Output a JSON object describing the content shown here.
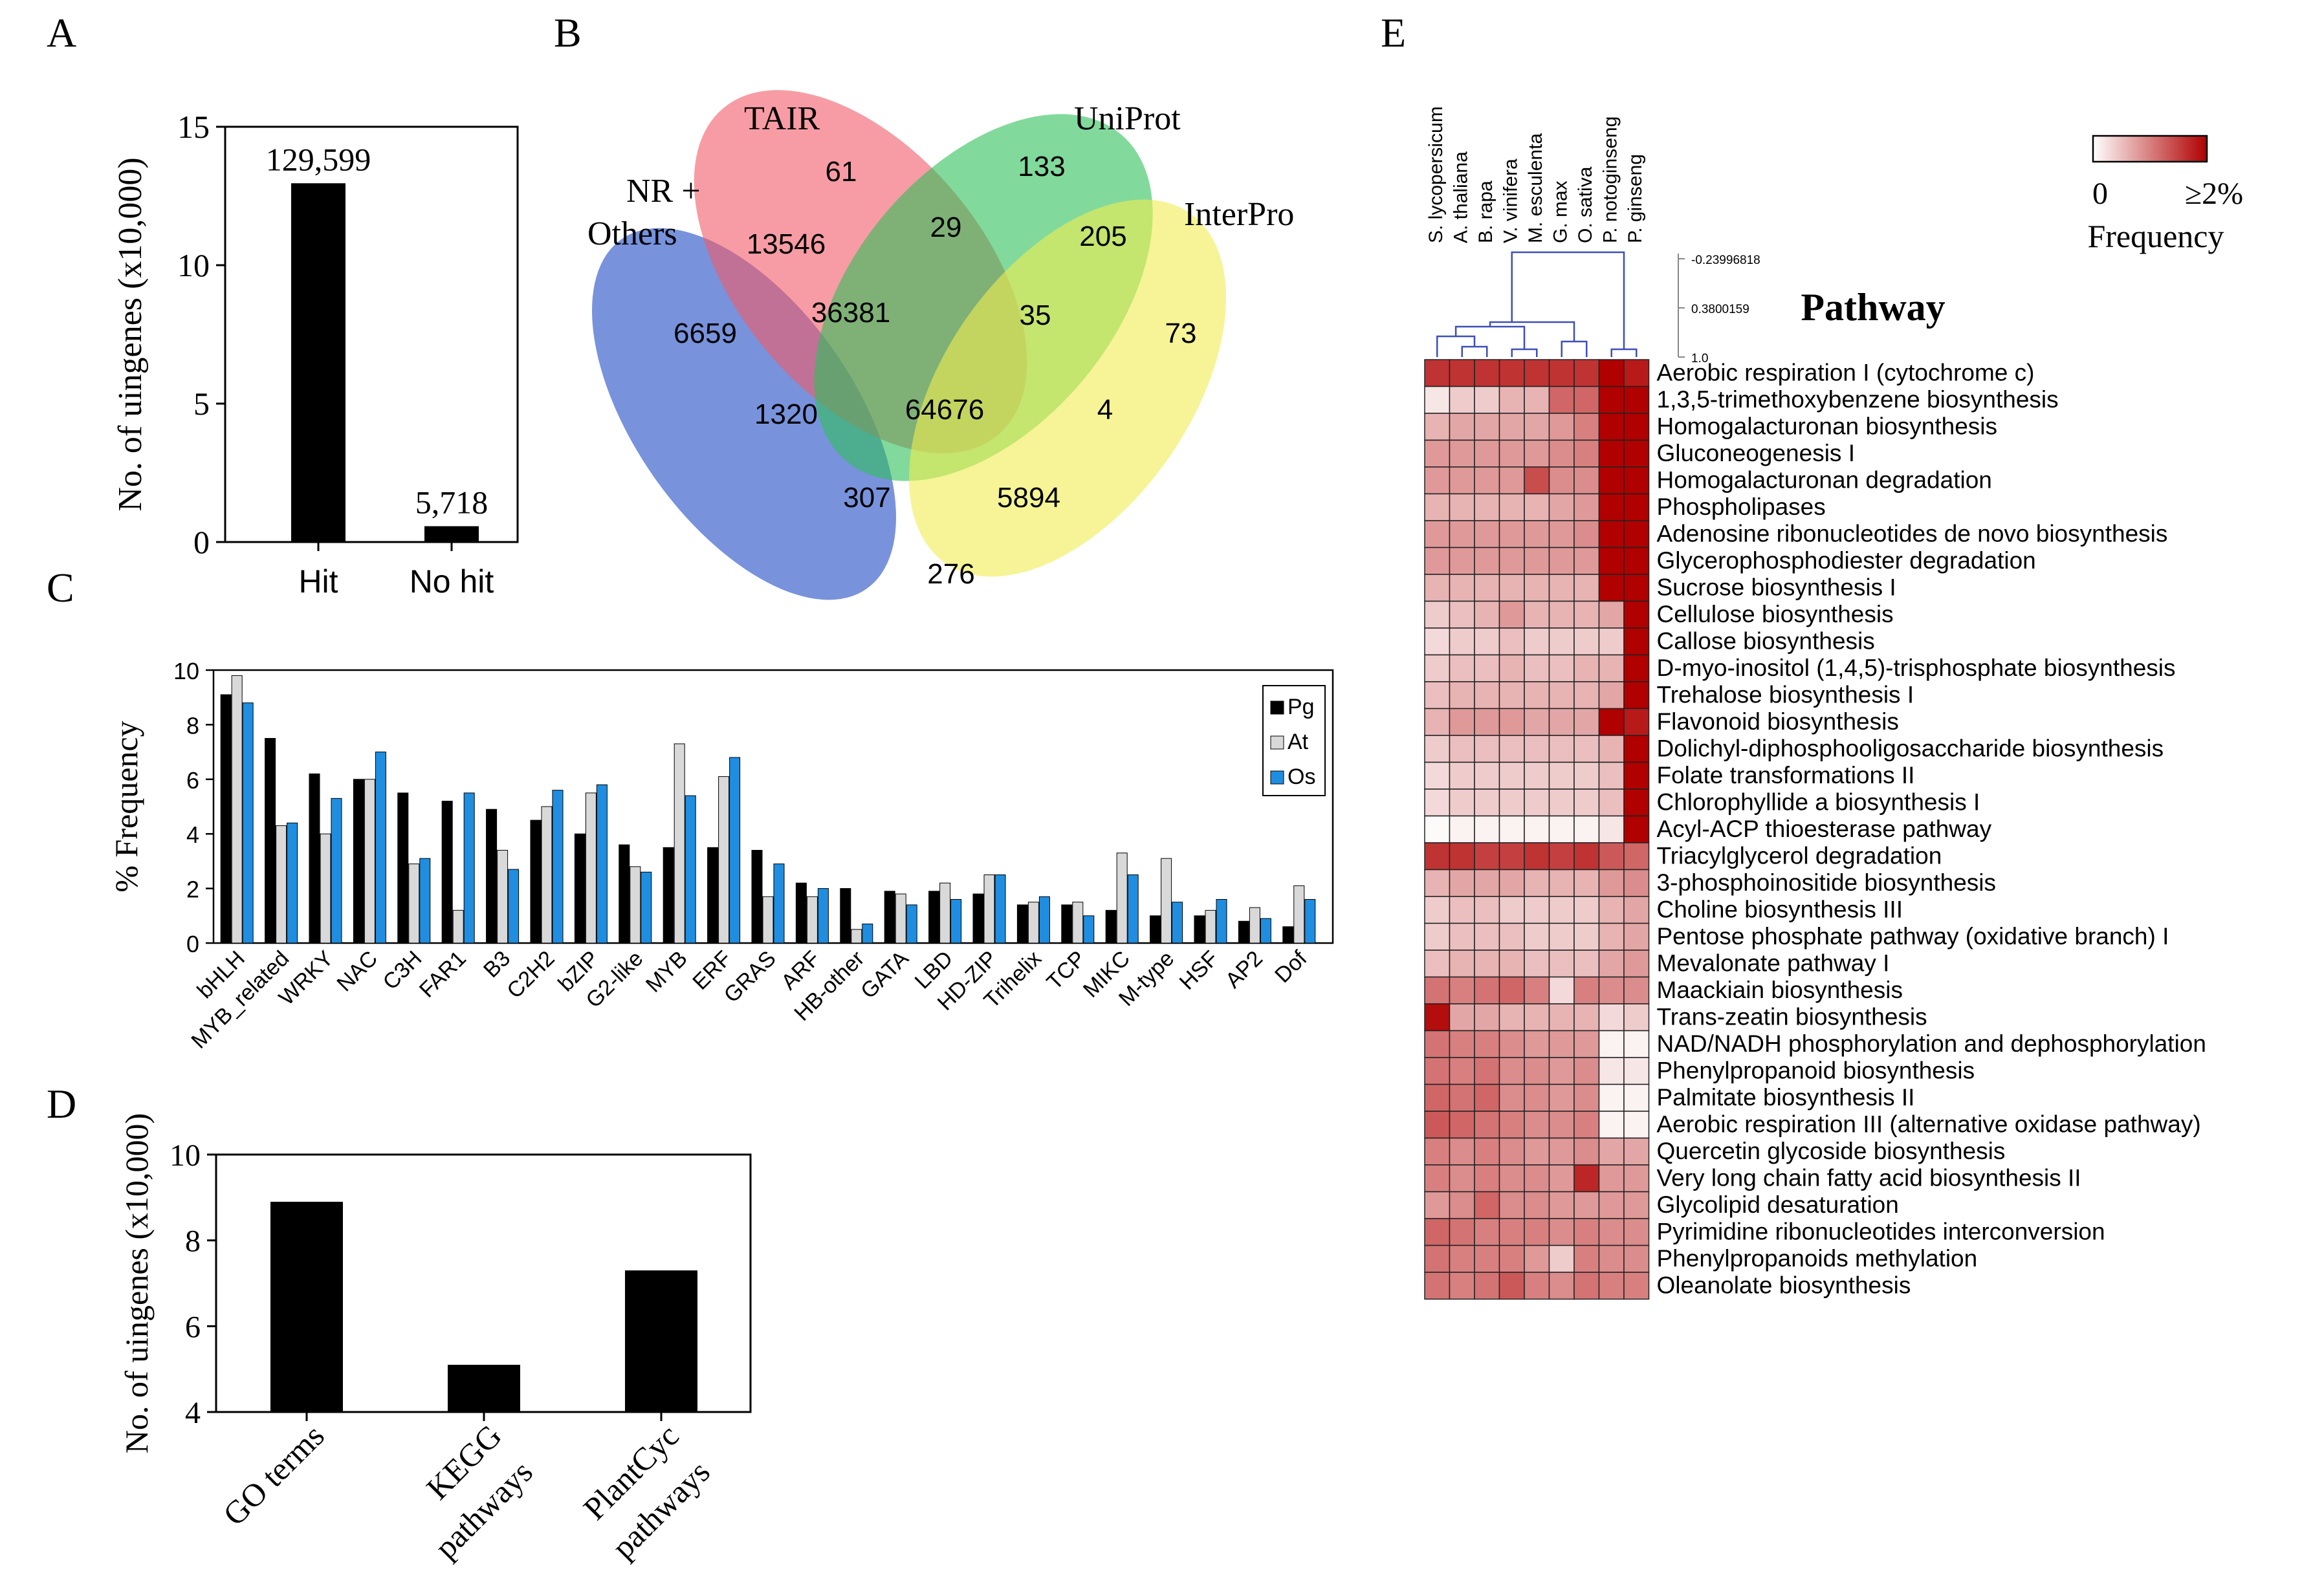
{
  "panels": {
    "a": "A",
    "b": "B",
    "c": "C",
    "d": "D",
    "e": "E"
  },
  "chart_data": [
    {
      "id": "A",
      "type": "bar",
      "categories": [
        "Hit",
        "No hit"
      ],
      "values": [
        12.9599,
        0.5718
      ],
      "data_labels": [
        "129,599",
        "5,718"
      ],
      "ylabel": "No. of uingenes (x10,000)",
      "ylim": [
        0,
        15
      ],
      "yticks": [
        0,
        5,
        10,
        15
      ]
    },
    {
      "id": "B",
      "type": "venn",
      "sets": [
        "NR +",
        "Others",
        "TAIR",
        "UniProt",
        "InterPro"
      ],
      "regions": [
        {
          "label": "NR + Others only",
          "value": "6659"
        },
        {
          "label": "TAIR only",
          "value": "61"
        },
        {
          "label": "UniProt only",
          "value": "133"
        },
        {
          "label": "InterPro only",
          "value": "73"
        },
        {
          "label": "NR+TAIR",
          "value": "13546"
        },
        {
          "label": "TAIR+UniProt",
          "value": "29"
        },
        {
          "label": "UniProt+InterPro",
          "value": "205"
        },
        {
          "label": "NR+TAIR+UniProt",
          "value": "36381"
        },
        {
          "label": "TAIR+UniProt+InterPro",
          "value": "35"
        },
        {
          "label": "NR+UniProt",
          "value": "1320"
        },
        {
          "label": "All four",
          "value": "64676"
        },
        {
          "label": "TAIR+InterPro",
          "value": "4"
        },
        {
          "label": "NR+UniProt+InterPro",
          "value": "307"
        },
        {
          "label": "NR+TAIR+InterPro",
          "value": "5894"
        },
        {
          "label": "NR+InterPro",
          "value": "276"
        }
      ]
    },
    {
      "id": "C",
      "type": "bar",
      "ylabel": "% Frequency",
      "ylim": [
        0,
        10
      ],
      "yticks": [
        0,
        2,
        4,
        6,
        8,
        10
      ],
      "categories": [
        "bHLH",
        "MYB_related",
        "WRKY",
        "NAC",
        "C3H",
        "FAR1",
        "B3",
        "C2H2",
        "bZIP",
        "G2-like",
        "MYB",
        "ERF",
        "GRAS",
        "ARF",
        "HB-other",
        "GATA",
        "LBD",
        "HD-ZIP",
        "Trihelix",
        "TCP",
        "MIKC",
        "M-type",
        "HSF",
        "AP2",
        "Dof"
      ],
      "series": [
        {
          "name": "Pg",
          "color": "#000000",
          "values": [
            9.1,
            7.5,
            6.2,
            6.0,
            5.5,
            5.2,
            4.9,
            4.5,
            4.0,
            3.6,
            3.5,
            3.5,
            3.4,
            2.2,
            2.0,
            1.9,
            1.9,
            1.8,
            1.4,
            1.4,
            1.2,
            1.0,
            1.0,
            0.8,
            0.6
          ]
        },
        {
          "name": "At",
          "color": "#d9d9d9",
          "values": [
            9.8,
            4.3,
            4.0,
            6.0,
            2.9,
            1.2,
            3.4,
            5.0,
            5.5,
            2.8,
            7.3,
            6.1,
            1.7,
            1.7,
            0.5,
            1.8,
            2.2,
            2.5,
            1.5,
            1.5,
            3.3,
            3.1,
            1.2,
            1.3,
            2.1
          ]
        },
        {
          "name": "Os",
          "color": "#1f8ee0",
          "values": [
            8.8,
            4.4,
            5.3,
            7.0,
            3.1,
            5.5,
            2.7,
            5.6,
            5.8,
            2.6,
            5.4,
            6.8,
            2.9,
            2.0,
            0.7,
            1.4,
            1.6,
            2.5,
            1.7,
            1.0,
            2.5,
            1.5,
            1.6,
            0.9,
            1.6
          ]
        }
      ]
    },
    {
      "id": "D",
      "type": "bar",
      "ylabel": "No. of uingenes (x10,000)",
      "ylim": [
        4,
        10
      ],
      "yticks": [
        4,
        6,
        8,
        10
      ],
      "categories": [
        {
          "line1": "GO terms",
          "line2": ""
        },
        {
          "line1": "KEGG",
          "line2": "pathways"
        },
        {
          "line1": "PlantCyc",
          "line2": "pathways"
        }
      ],
      "values": [
        8.9,
        5.1,
        7.3
      ]
    },
    {
      "id": "E",
      "type": "heatmap",
      "title": "Pathway",
      "colorbar": {
        "min_label": "0",
        "max_label": "≥2%",
        "label": "Frequency",
        "low_color": "#ffffff",
        "high_color": "#b00000"
      },
      "dendrogram_scale": [
        "-0.23996818",
        "0.3800159",
        "1.0"
      ],
      "columns": [
        "S. lycopersicum",
        "A. thaliana",
        "B. rapa",
        "V. vinifera",
        "M. esculenta",
        "G. max",
        "O. sativa",
        "P. notoginseng",
        "P. ginseng"
      ],
      "rows": [
        "Aerobic respiration I (cytochrome c)",
        "1,3,5-trimethoxybenzene biosynthesis",
        "Homogalacturonan biosynthesis",
        "Gluconeogenesis I",
        "Homogalacturonan degradation",
        "Phospholipases",
        "Adenosine ribonucleotides de novo biosynthesis",
        "Glycerophosphodiester degradation",
        "Sucrose biosynthesis I",
        "Cellulose biosynthesis",
        "Callose biosynthesis",
        "D-myo-inositol (1,4,5)-trisphosphate biosynthesis",
        "Trehalose biosynthesis I",
        "Flavonoid biosynthesis",
        "Dolichyl-diphosphooligosaccharide biosynthesis",
        "Folate transformations II",
        "Chlorophyllide a biosynthesis I",
        "Acyl-ACP thioesterase pathway",
        "Triacylglycerol degradation",
        "3-phosphoinositide biosynthesis",
        "Choline biosynthesis III",
        "Pentose phosphate pathway (oxidative branch) I",
        "Mevalonate pathway I",
        "Maackiain biosynthesis",
        "Trans-zeatin biosynthesis",
        "NAD/NADH phosphorylation and dephosphorylation",
        "Phenylpropanoid biosynthesis",
        "Palmitate biosynthesis II",
        "Aerobic respiration III (alternative oxidase pathway)",
        "Quercetin glycoside biosynthesis",
        "Very long chain fatty acid biosynthesis II",
        "Glycolipid desaturation",
        "Pyrimidine ribonucleotides interconversion",
        "Phenylpropanoids methylation",
        "Oleanolate biosynthesis"
      ],
      "values": [
        [
          0.8,
          0.8,
          0.8,
          0.8,
          0.8,
          0.8,
          0.8,
          1.0,
          0.9
        ],
        [
          0.1,
          0.2,
          0.2,
          0.3,
          0.3,
          0.6,
          0.6,
          1.0,
          1.0
        ],
        [
          0.3,
          0.35,
          0.35,
          0.35,
          0.35,
          0.4,
          0.5,
          1.0,
          1.0
        ],
        [
          0.4,
          0.4,
          0.4,
          0.4,
          0.4,
          0.45,
          0.5,
          1.0,
          1.0
        ],
        [
          0.4,
          0.4,
          0.4,
          0.4,
          0.7,
          0.45,
          0.45,
          1.0,
          1.0
        ],
        [
          0.3,
          0.3,
          0.3,
          0.3,
          0.3,
          0.35,
          0.4,
          1.0,
          1.0
        ],
        [
          0.4,
          0.4,
          0.4,
          0.4,
          0.4,
          0.4,
          0.45,
          1.0,
          1.0
        ],
        [
          0.4,
          0.4,
          0.4,
          0.4,
          0.4,
          0.4,
          0.4,
          1.0,
          1.0
        ],
        [
          0.3,
          0.3,
          0.3,
          0.3,
          0.3,
          0.3,
          0.3,
          1.0,
          1.0
        ],
        [
          0.2,
          0.25,
          0.3,
          0.4,
          0.3,
          0.3,
          0.3,
          0.35,
          1.0
        ],
        [
          0.15,
          0.2,
          0.2,
          0.25,
          0.2,
          0.2,
          0.2,
          0.2,
          1.0
        ],
        [
          0.2,
          0.25,
          0.25,
          0.3,
          0.25,
          0.25,
          0.3,
          0.3,
          1.0
        ],
        [
          0.25,
          0.3,
          0.3,
          0.3,
          0.3,
          0.3,
          0.3,
          0.35,
          1.0
        ],
        [
          0.3,
          0.4,
          0.4,
          0.4,
          0.35,
          0.35,
          0.35,
          1.0,
          0.9
        ],
        [
          0.2,
          0.25,
          0.25,
          0.25,
          0.25,
          0.25,
          0.25,
          0.3,
          1.0
        ],
        [
          0.15,
          0.2,
          0.2,
          0.2,
          0.2,
          0.2,
          0.2,
          0.25,
          1.0
        ],
        [
          0.15,
          0.2,
          0.2,
          0.2,
          0.2,
          0.2,
          0.2,
          0.25,
          1.0
        ],
        [
          0.02,
          0.05,
          0.05,
          0.05,
          0.05,
          0.05,
          0.05,
          0.1,
          1.0
        ],
        [
          0.8,
          0.8,
          0.75,
          0.75,
          0.8,
          0.75,
          0.8,
          0.65,
          0.6
        ],
        [
          0.3,
          0.35,
          0.35,
          0.35,
          0.3,
          0.3,
          0.3,
          0.4,
          0.45
        ],
        [
          0.2,
          0.25,
          0.25,
          0.2,
          0.2,
          0.2,
          0.2,
          0.3,
          0.35
        ],
        [
          0.2,
          0.25,
          0.25,
          0.25,
          0.2,
          0.2,
          0.2,
          0.3,
          0.35
        ],
        [
          0.25,
          0.3,
          0.3,
          0.3,
          0.25,
          0.25,
          0.25,
          0.35,
          0.4
        ],
        [
          0.55,
          0.5,
          0.55,
          0.6,
          0.5,
          0.15,
          0.5,
          0.45,
          0.45
        ],
        [
          0.95,
          0.35,
          0.35,
          0.3,
          0.3,
          0.3,
          0.3,
          0.15,
          0.2
        ],
        [
          0.55,
          0.5,
          0.5,
          0.45,
          0.4,
          0.4,
          0.4,
          0.05,
          0.05
        ],
        [
          0.55,
          0.5,
          0.55,
          0.45,
          0.45,
          0.4,
          0.45,
          0.1,
          0.1
        ],
        [
          0.6,
          0.55,
          0.6,
          0.45,
          0.45,
          0.4,
          0.45,
          0.05,
          0.05
        ],
        [
          0.65,
          0.6,
          0.55,
          0.5,
          0.45,
          0.45,
          0.5,
          0.05,
          0.05
        ],
        [
          0.5,
          0.45,
          0.5,
          0.45,
          0.4,
          0.4,
          0.45,
          0.35,
          0.35
        ],
        [
          0.5,
          0.45,
          0.5,
          0.45,
          0.45,
          0.4,
          0.85,
          0.4,
          0.4
        ],
        [
          0.4,
          0.45,
          0.6,
          0.45,
          0.45,
          0.4,
          0.4,
          0.4,
          0.4
        ],
        [
          0.6,
          0.55,
          0.5,
          0.5,
          0.5,
          0.45,
          0.5,
          0.45,
          0.45
        ],
        [
          0.55,
          0.5,
          0.5,
          0.5,
          0.4,
          0.2,
          0.5,
          0.45,
          0.45
        ],
        [
          0.55,
          0.5,
          0.55,
          0.65,
          0.5,
          0.45,
          0.55,
          0.5,
          0.5
        ]
      ]
    }
  ]
}
